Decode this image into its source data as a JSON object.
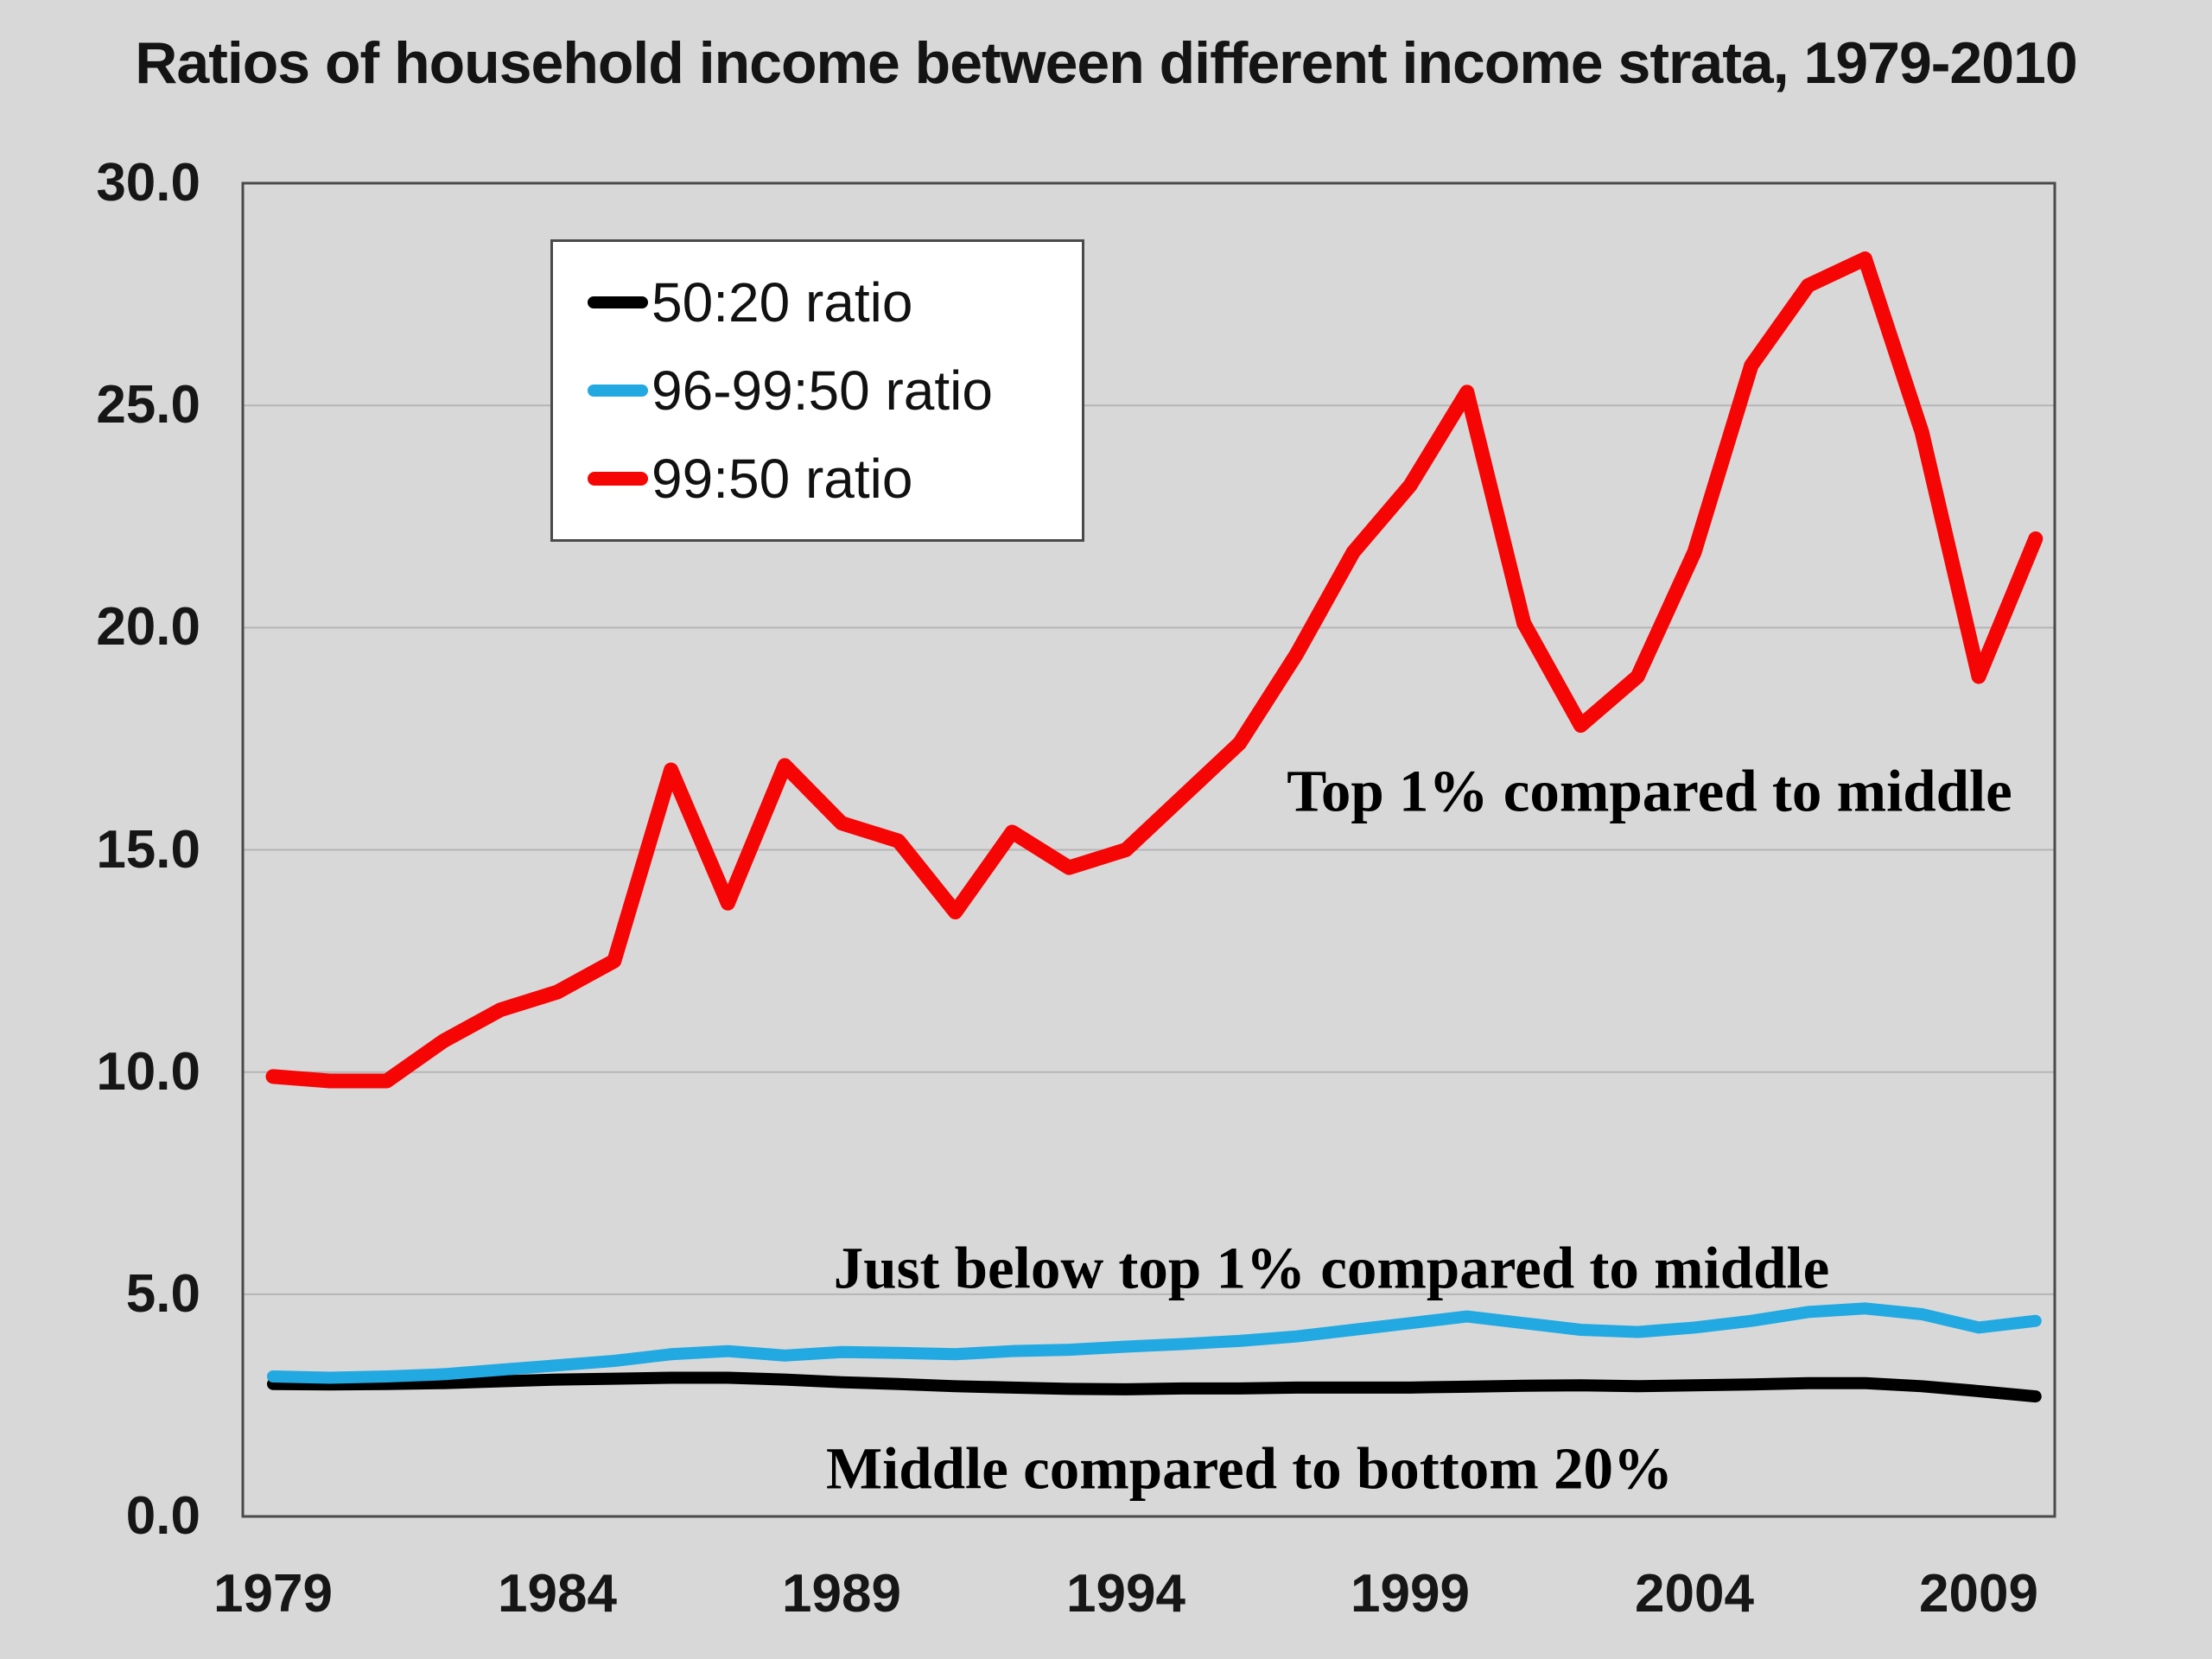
{
  "title": "Ratios of household income between different income strata, 1979-2010",
  "legend": {
    "items": [
      {
        "label": "50:20 ratio",
        "color": "#000000"
      },
      {
        "label": "96-99:50 ratio",
        "color": "#22a9e2"
      },
      {
        "label": "99:50 ratio",
        "color": "#f60505"
      }
    ]
  },
  "annotations": [
    {
      "id": "top1",
      "text": "Top 1% compared to middle"
    },
    {
      "id": "just",
      "text": "Just below top 1% compared to middle"
    },
    {
      "id": "middle",
      "text": "Middle compared to bottom 20%"
    }
  ],
  "chart_data": {
    "type": "line",
    "title": "Ratios of household income between different income strata, 1979-2010",
    "xlabel": "",
    "ylabel": "",
    "ylim": [
      0,
      30
    ],
    "xlim": [
      1978.4,
      2010.3
    ],
    "grid": true,
    "legend_position": "top-left-inside",
    "background_color": "#d8d8d8",
    "gridline_color": "#b5b5b5",
    "frame_color": "#4a4a4a",
    "yticks": [
      "30.0",
      "25.0",
      "20.0",
      "15.0",
      "10.0",
      "5.0",
      "0.0"
    ],
    "xticks": [
      1979,
      1984,
      1989,
      1994,
      1999,
      2004,
      2009
    ],
    "x": [
      1979,
      1980,
      1981,
      1982,
      1983,
      1984,
      1985,
      1986,
      1987,
      1988,
      1989,
      1990,
      1991,
      1992,
      1993,
      1994,
      1995,
      1996,
      1997,
      1998,
      1999,
      2000,
      2001,
      2002,
      2003,
      2004,
      2005,
      2006,
      2007,
      2008,
      2009,
      2010
    ],
    "series": [
      {
        "name": "50:20 ratio",
        "color": "#000000",
        "values": [
          2.98,
          2.97,
          2.98,
          3.0,
          3.04,
          3.08,
          3.1,
          3.12,
          3.12,
          3.08,
          3.02,
          2.98,
          2.93,
          2.9,
          2.87,
          2.86,
          2.88,
          2.88,
          2.9,
          2.9,
          2.9,
          2.92,
          2.94,
          2.95,
          2.93,
          2.95,
          2.97,
          3.0,
          3.0,
          2.93,
          2.82,
          2.7
        ]
      },
      {
        "name": "96-99:50 ratio",
        "color": "#22a9e2",
        "values": [
          3.15,
          3.12,
          3.15,
          3.2,
          3.3,
          3.4,
          3.5,
          3.65,
          3.72,
          3.62,
          3.7,
          3.68,
          3.65,
          3.72,
          3.75,
          3.82,
          3.88,
          3.95,
          4.05,
          4.2,
          4.35,
          4.5,
          4.35,
          4.2,
          4.15,
          4.25,
          4.4,
          4.6,
          4.68,
          4.55,
          4.25,
          4.4
        ]
      },
      {
        "name": "99:50 ratio",
        "color": "#f60505",
        "values": [
          9.9,
          9.8,
          9.8,
          10.7,
          11.4,
          11.8,
          12.5,
          16.8,
          13.8,
          16.9,
          15.6,
          15.2,
          13.6,
          15.4,
          14.6,
          15.0,
          16.2,
          17.4,
          19.4,
          21.7,
          23.2,
          25.3,
          20.1,
          17.8,
          18.9,
          21.7,
          25.9,
          27.7,
          28.3,
          24.4,
          18.9,
          22.0
        ]
      }
    ]
  }
}
